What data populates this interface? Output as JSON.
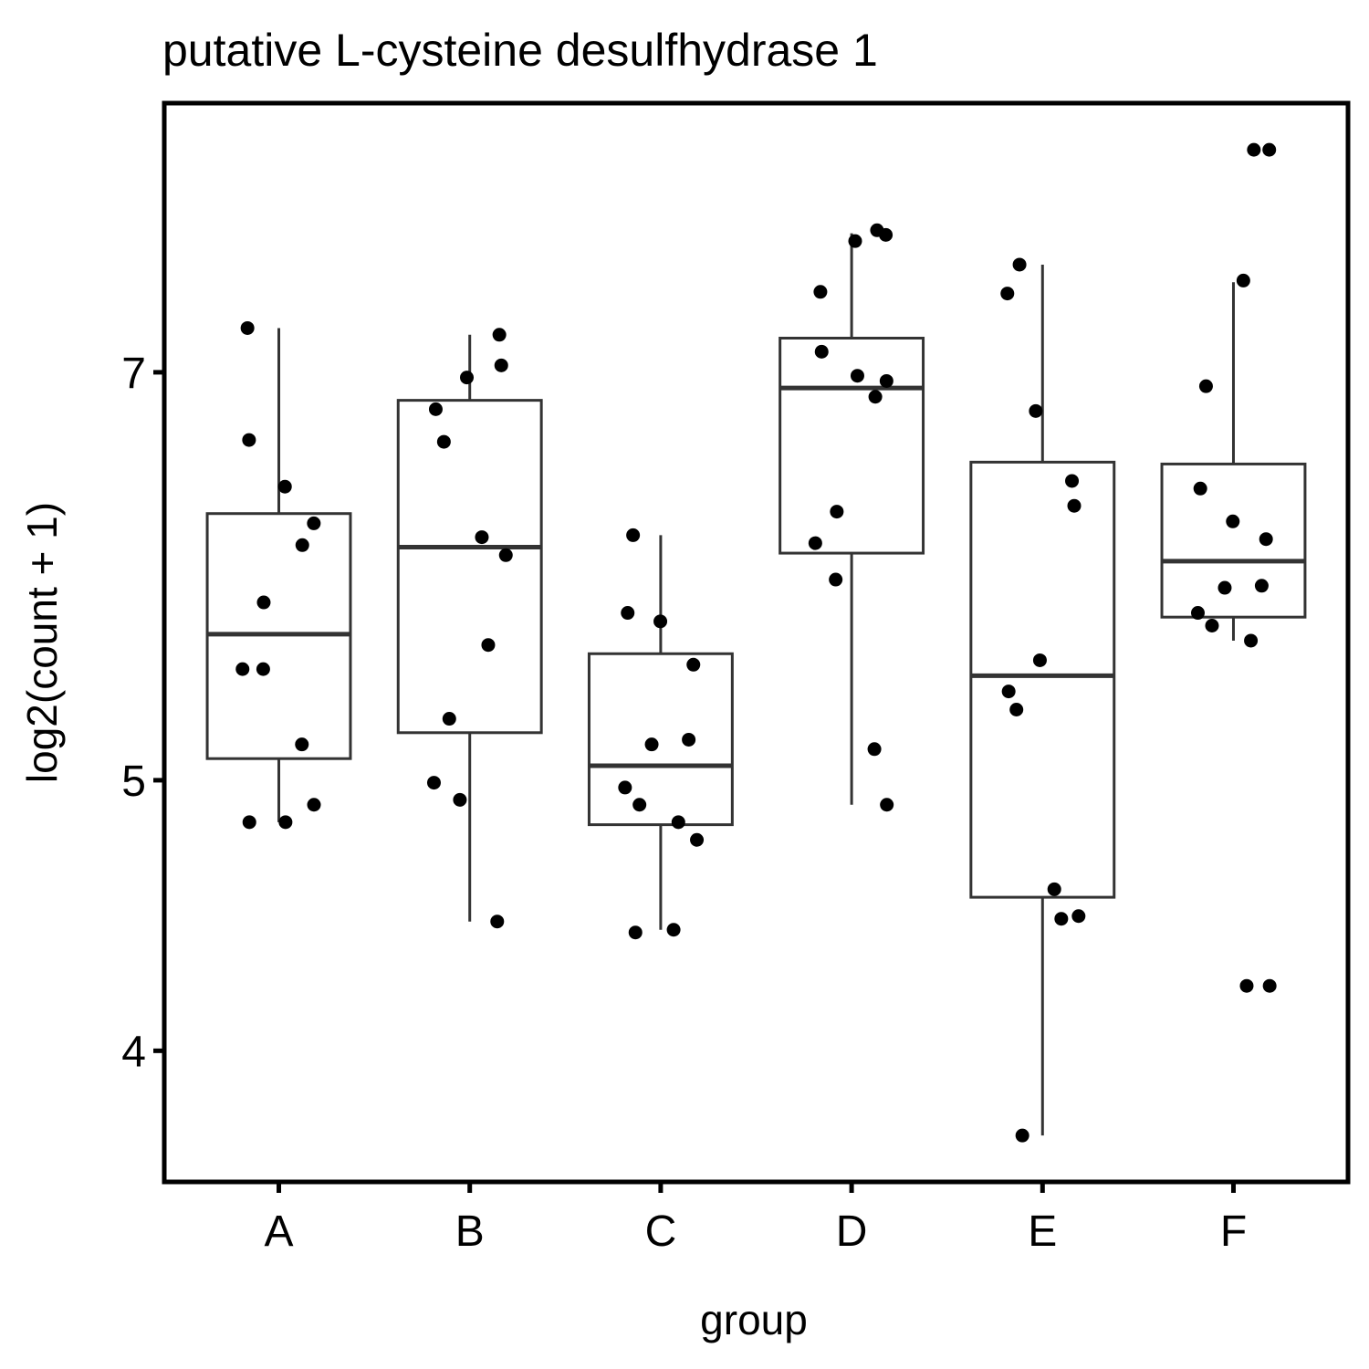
{
  "chart_data": {
    "type": "box",
    "title": "putative L-cysteine desulfhydrase 1",
    "x_label": "group",
    "y_label": "log2(count + 1)",
    "yscale": "log",
    "ylim": [
      3.59,
      8.74
    ],
    "yticks": [
      4,
      5,
      7
    ],
    "categories": [
      "A",
      "B",
      "C",
      "D",
      "E",
      "F"
    ],
    "box_color": "#333333",
    "point_color": "#000000",
    "boxes": [
      {
        "whisker_low": 4.83,
        "q1": 5.09,
        "median": 5.64,
        "q3": 6.23,
        "whisker_high": 7.26,
        "points": [
          7.26,
          6.62,
          6.37,
          6.18,
          6.07,
          5.79,
          5.48,
          5.48,
          5.15,
          4.9,
          4.83,
          4.83
        ]
      },
      {
        "whisker_low": 4.45,
        "q1": 5.2,
        "median": 6.06,
        "q3": 6.84,
        "whisker_high": 7.22,
        "points": [
          7.22,
          7.04,
          6.97,
          6.79,
          6.61,
          6.11,
          6.02,
          5.59,
          5.26,
          4.99,
          4.92,
          4.45
        ]
      },
      {
        "whisker_low": 4.42,
        "q1": 4.82,
        "median": 5.06,
        "q3": 5.55,
        "whisker_high": 6.12,
        "points": [
          6.12,
          5.74,
          5.7,
          5.5,
          5.17,
          5.15,
          4.97,
          4.9,
          4.83,
          4.76,
          4.42,
          4.41
        ]
      },
      {
        "whisker_low": 4.9,
        "q1": 6.03,
        "median": 6.91,
        "q3": 7.2,
        "whisker_high": 7.85,
        "points": [
          7.87,
          7.84,
          7.8,
          7.48,
          7.12,
          6.98,
          6.95,
          6.86,
          6.24,
          6.08,
          5.9,
          5.13,
          4.9
        ]
      },
      {
        "whisker_low": 3.73,
        "q1": 4.54,
        "median": 5.45,
        "q3": 6.5,
        "whisker_high": 7.65,
        "points": [
          7.65,
          7.47,
          6.78,
          6.4,
          6.27,
          5.52,
          5.38,
          5.3,
          4.57,
          4.47,
          4.46,
          3.73
        ]
      },
      {
        "whisker_low": 5.61,
        "q1": 5.72,
        "median": 5.99,
        "q3": 6.49,
        "whisker_high": 7.54,
        "points": [
          8.41,
          8.41,
          7.55,
          6.92,
          6.36,
          6.19,
          6.1,
          5.87,
          5.86,
          5.74,
          5.68,
          5.61,
          4.22,
          4.22
        ]
      }
    ]
  }
}
